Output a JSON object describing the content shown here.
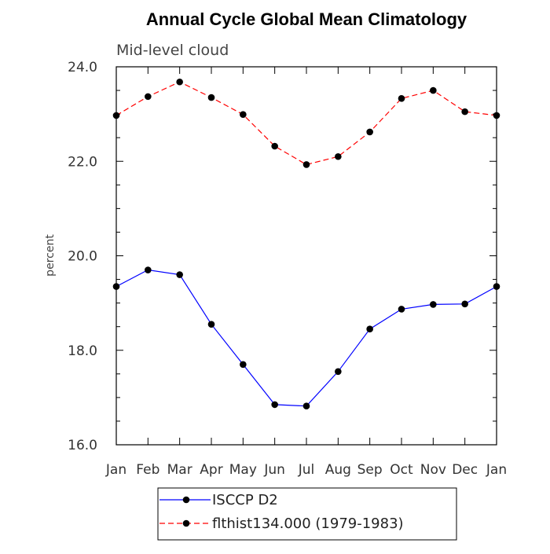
{
  "chart_data": {
    "type": "line",
    "title": "Annual Cycle Global Mean Climatology",
    "subtitle": "Mid-level cloud",
    "xlabel": "",
    "ylabel": "percent",
    "categories": [
      "Jan",
      "Feb",
      "Mar",
      "Apr",
      "May",
      "Jun",
      "Jul",
      "Aug",
      "Sep",
      "Oct",
      "Nov",
      "Dec",
      "Jan"
    ],
    "ylim": [
      16.0,
      24.0
    ],
    "yticks": [
      16.0,
      18.0,
      20.0,
      22.0,
      24.0
    ],
    "ytick_labels": [
      "16.0",
      "18.0",
      "20.0",
      "22.0",
      "24.0"
    ],
    "y_minor_step": 0.5,
    "series": [
      {
        "name": "ISCCP D2",
        "color": "#0000ff",
        "dash": "solid",
        "marker": "circle",
        "values": [
          19.35,
          19.7,
          19.6,
          18.55,
          17.7,
          16.85,
          16.82,
          17.55,
          18.45,
          18.87,
          18.97,
          18.98,
          19.35
        ]
      },
      {
        "name": "flthist134.000 (1979-1983)",
        "color": "#ff0000",
        "dash": "dashed",
        "marker": "circle",
        "values": [
          22.97,
          23.37,
          23.68,
          23.35,
          22.99,
          22.32,
          21.93,
          22.1,
          22.62,
          23.33,
          23.5,
          23.05,
          22.97
        ]
      }
    ],
    "legend": {
      "position": "bottom-center"
    }
  }
}
